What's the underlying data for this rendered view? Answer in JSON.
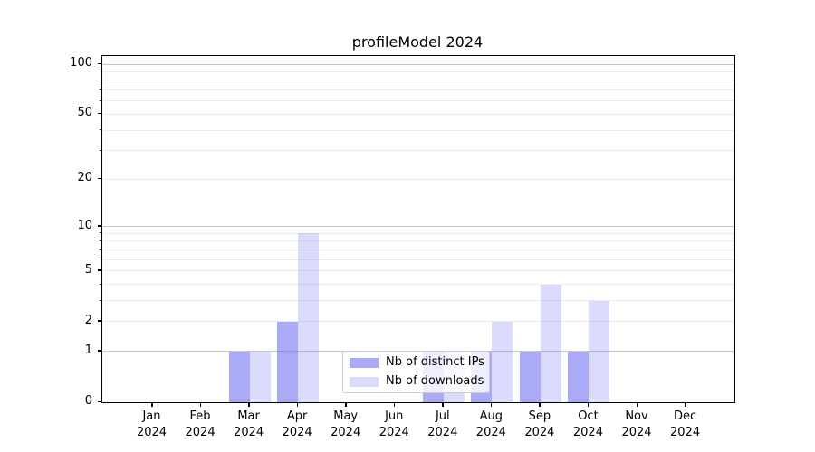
{
  "figure": {
    "background": "#ffffff"
  },
  "chart_data": {
    "type": "bar",
    "title": "profileModel 2024",
    "categories": [
      "Jan",
      "Feb",
      "Mar",
      "Apr",
      "May",
      "Jun",
      "Jul",
      "Aug",
      "Sep",
      "Oct",
      "Nov",
      "Dec"
    ],
    "x_year_label": "2024",
    "series": [
      {
        "name": "Nb of distinct IPs",
        "color": "rgba(100,100,240,0.55)",
        "color_hex_on_white": "#a9a9f9",
        "values": [
          0,
          0,
          1,
          2,
          0,
          0,
          1,
          1,
          1,
          1,
          0,
          0
        ]
      },
      {
        "name": "Nb of downloads",
        "color": "rgba(100,100,240,0.23)",
        "color_hex_on_white": "#dbdbf8",
        "values": [
          0,
          0,
          1,
          9,
          0,
          0,
          1,
          2,
          4,
          3,
          0,
          0
        ]
      }
    ],
    "xlabel": "",
    "ylabel": "",
    "yscale": "log1p",
    "ylim": [
      0,
      113
    ],
    "y_tick_labels": [
      0,
      1,
      2,
      5,
      10,
      20,
      50,
      100
    ],
    "y_major_gridlines": [
      1,
      10,
      100
    ],
    "y_minor_gridlines": [
      2,
      3,
      4,
      5,
      6,
      7,
      8,
      9,
      20,
      30,
      40,
      50,
      60,
      70,
      80,
      90
    ],
    "grid": true,
    "legend_position": "lower center"
  }
}
